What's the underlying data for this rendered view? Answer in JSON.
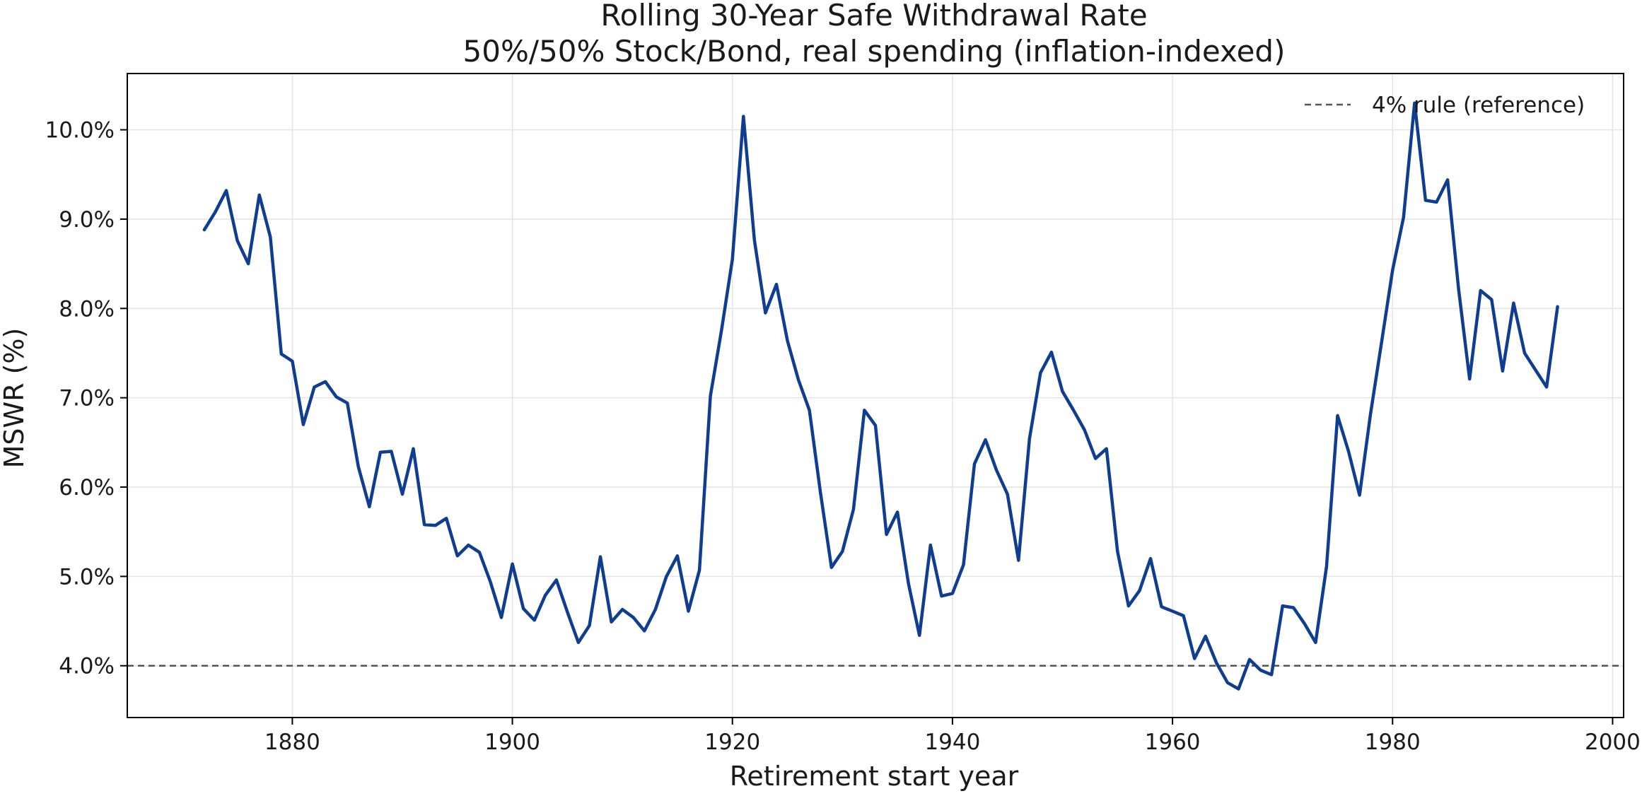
{
  "chart_data": {
    "type": "line",
    "title": "Rolling 30-Year Safe Withdrawal Rate",
    "subtitle": "50%/50% Stock/Bond, real spending (inflation-indexed)",
    "xlabel": "Retirement start year",
    "ylabel": "MSWR (%)",
    "xlim": [
      1865,
      2001
    ],
    "ylim": [
      3.42,
      10.63
    ],
    "x_ticks": [
      1880,
      1900,
      1920,
      1940,
      1960,
      1980,
      2000
    ],
    "x_tick_labels": [
      "1880",
      "1900",
      "1920",
      "1940",
      "1960",
      "1980",
      "2000"
    ],
    "y_ticks": [
      4,
      5,
      6,
      7,
      8,
      9,
      10
    ],
    "y_tick_labels": [
      "4.0%",
      "5.0%",
      "6.0%",
      "7.0%",
      "8.0%",
      "9.0%",
      "10.0%"
    ],
    "grid": true,
    "legend_position": "top-right",
    "reference_line": {
      "y": 4.0,
      "label": "4% rule (reference)",
      "color": "#555555",
      "style": "dashed"
    },
    "series": [
      {
        "color": "#0f3d91",
        "x": [
          1872,
          1873,
          1874,
          1875,
          1876,
          1877,
          1878,
          1879,
          1880,
          1881,
          1882,
          1883,
          1884,
          1885,
          1886,
          1887,
          1888,
          1889,
          1890,
          1891,
          1892,
          1893,
          1894,
          1895,
          1896,
          1897,
          1898,
          1899,
          1900,
          1901,
          1902,
          1903,
          1904,
          1905,
          1906,
          1907,
          1908,
          1909,
          1910,
          1911,
          1912,
          1913,
          1914,
          1915,
          1916,
          1917,
          1918,
          1919,
          1920,
          1921,
          1922,
          1923,
          1924,
          1925,
          1926,
          1927,
          1928,
          1929,
          1930,
          1931,
          1932,
          1933,
          1934,
          1935,
          1936,
          1937,
          1938,
          1939,
          1940,
          1941,
          1942,
          1943,
          1944,
          1945,
          1946,
          1947,
          1948,
          1949,
          1950,
          1951,
          1952,
          1953,
          1954,
          1955,
          1956,
          1957,
          1958,
          1959,
          1960,
          1961,
          1962,
          1963,
          1964,
          1965,
          1966,
          1967,
          1968,
          1969,
          1970,
          1971,
          1972,
          1973,
          1974,
          1975,
          1976,
          1977,
          1978,
          1979,
          1980,
          1981,
          1982,
          1983,
          1984,
          1985,
          1986,
          1987,
          1988,
          1989,
          1990,
          1991,
          1992,
          1993,
          1994,
          1995
        ],
        "y": [
          8.88,
          9.08,
          9.32,
          8.76,
          8.5,
          9.27,
          8.8,
          7.49,
          7.41,
          6.7,
          7.12,
          7.18,
          7.01,
          6.94,
          6.23,
          5.78,
          6.39,
          6.4,
          5.92,
          6.43,
          5.58,
          5.57,
          5.65,
          5.23,
          5.35,
          5.27,
          4.94,
          4.54,
          5.14,
          4.64,
          4.51,
          4.79,
          4.96,
          4.6,
          4.26,
          4.45,
          5.22,
          4.49,
          4.63,
          4.54,
          4.39,
          4.63,
          5.0,
          5.23,
          4.61,
          5.07,
          7.02,
          7.75,
          8.55,
          10.15,
          8.76,
          7.95,
          8.27,
          7.64,
          7.2,
          6.86,
          5.94,
          5.1,
          5.28,
          5.75,
          6.86,
          6.69,
          5.47,
          5.72,
          4.92,
          4.34,
          5.35,
          4.78,
          4.81,
          5.13,
          6.26,
          6.53,
          6.19,
          5.92,
          5.18,
          6.54,
          7.28,
          7.51,
          7.07,
          6.86,
          6.64,
          6.32,
          6.43,
          5.28,
          4.67,
          4.84,
          5.2,
          4.66,
          4.61,
          4.56,
          4.08,
          4.33,
          4.03,
          3.81,
          3.74,
          4.07,
          3.95,
          3.9,
          4.67,
          4.65,
          4.47,
          4.26,
          5.11,
          6.8,
          6.4,
          5.91,
          6.82,
          7.62,
          8.43,
          9.02,
          10.3,
          9.21,
          9.19,
          9.44,
          8.22,
          7.21,
          8.2,
          8.1,
          7.3,
          8.06,
          7.5,
          7.31,
          7.12,
          8.02
        ]
      }
    ]
  }
}
